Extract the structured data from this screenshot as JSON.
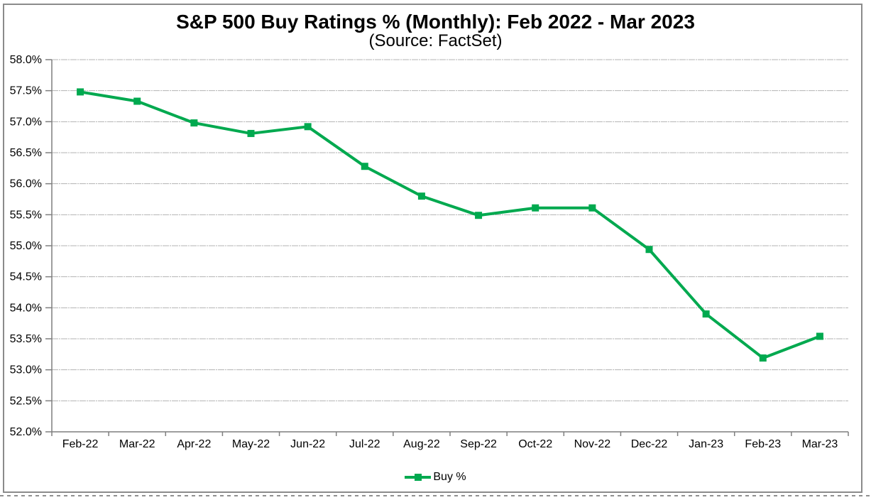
{
  "chart_data": {
    "type": "line",
    "title": "S&P 500 Buy Ratings % (Monthly): Feb 2022 - Mar 2023",
    "subtitle": "(Source: FactSet)",
    "categories": [
      "Feb-22",
      "Mar-22",
      "Apr-22",
      "May-22",
      "Jun-22",
      "Jul-22",
      "Aug-22",
      "Sep-22",
      "Oct-22",
      "Nov-22",
      "Dec-22",
      "Jan-23",
      "Feb-23",
      "Mar-23"
    ],
    "series": [
      {
        "name": "Buy %",
        "marker": "square",
        "color": "#00A94F",
        "values": [
          57.48,
          57.33,
          56.98,
          56.81,
          56.92,
          56.28,
          55.8,
          55.49,
          55.61,
          55.61,
          54.94,
          53.9,
          53.19,
          53.54
        ]
      }
    ],
    "ylim": [
      52.0,
      58.0
    ],
    "ytick_step": 0.5,
    "ytick_suffix": "%",
    "ytick_labels": [
      "52.0%",
      "52.5%",
      "53.0%",
      "53.5%",
      "54.0%",
      "54.5%",
      "55.0%",
      "55.5%",
      "56.0%",
      "56.5%",
      "57.0%",
      "57.5%",
      "58.0%"
    ],
    "xlabel": "",
    "ylabel": "",
    "grid": "horizontal",
    "legend_position": "bottom-center",
    "colors": {
      "line": "#00A94F",
      "gridline": "#b3b3b3",
      "axis": "#7f7f7f",
      "text": "#000000",
      "frame_border": "#8b8b8b"
    }
  }
}
